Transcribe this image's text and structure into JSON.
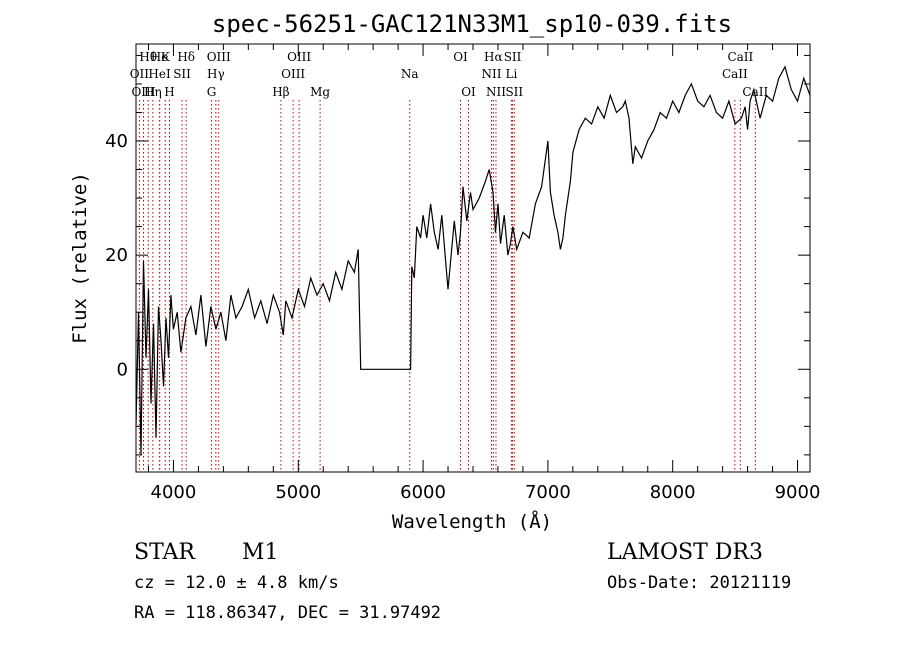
{
  "chart_data": {
    "type": "line",
    "title": "spec-56251-GAC121N33M1_sp10-039.fits",
    "xlabel": "Wavelength (Å)",
    "ylabel": "Flux (relative)",
    "xlim": [
      3700,
      9100
    ],
    "ylim": [
      -18,
      57
    ],
    "xticks": [
      4000,
      5000,
      6000,
      7000,
      8000,
      9000
    ],
    "yticks": [
      0,
      20,
      40
    ],
    "grid": false,
    "series": [
      {
        "name": "flux",
        "x": [
          3700,
          3720,
          3740,
          3760,
          3780,
          3800,
          3820,
          3840,
          3860,
          3880,
          3900,
          3920,
          3940,
          3960,
          3980,
          4000,
          4030,
          4060,
          4100,
          4140,
          4180,
          4220,
          4260,
          4300,
          4340,
          4380,
          4420,
          4460,
          4500,
          4550,
          4600,
          4650,
          4700,
          4750,
          4800,
          4850,
          4880,
          4900,
          4950,
          5000,
          5050,
          5100,
          5150,
          5200,
          5250,
          5300,
          5350,
          5400,
          5450,
          5480,
          5500,
          5520,
          5700,
          5900,
          5910,
          5930,
          5950,
          5980,
          6000,
          6030,
          6060,
          6090,
          6120,
          6150,
          6200,
          6250,
          6280,
          6300,
          6320,
          6350,
          6380,
          6400,
          6450,
          6500,
          6530,
          6560,
          6580,
          6600,
          6620,
          6650,
          6680,
          6700,
          6720,
          6750,
          6800,
          6850,
          6900,
          6950,
          7000,
          7020,
          7050,
          7080,
          7100,
          7120,
          7140,
          7180,
          7200,
          7250,
          7300,
          7350,
          7400,
          7450,
          7500,
          7550,
          7600,
          7620,
          7650,
          7680,
          7700,
          7750,
          7800,
          7850,
          7900,
          7950,
          8000,
          8050,
          8100,
          8150,
          8200,
          8250,
          8300,
          8350,
          8400,
          8450,
          8500,
          8550,
          8580,
          8600,
          8620,
          8650,
          8700,
          8750,
          8800,
          8850,
          8900,
          8950,
          9000,
          9050,
          9100
        ],
        "y": [
          -10,
          10,
          -15,
          19,
          2,
          14,
          -6,
          8,
          -12,
          11,
          5,
          -3,
          9,
          2,
          13,
          7,
          10,
          3,
          9,
          11,
          6,
          13,
          4,
          11,
          7,
          10,
          5,
          13,
          9,
          11,
          14,
          9,
          12,
          8,
          13,
          10,
          6,
          12,
          9,
          14,
          11,
          16,
          13,
          15,
          12,
          17,
          14,
          19,
          17,
          21,
          0,
          0,
          0,
          0,
          18,
          16,
          25,
          23,
          27,
          23,
          29,
          24,
          21,
          27,
          14,
          26,
          20,
          24,
          32,
          26,
          31,
          28,
          30,
          33,
          35,
          31,
          24,
          29,
          22,
          27,
          20,
          22,
          25,
          21,
          24,
          23,
          29,
          32,
          40,
          31,
          27,
          24,
          21,
          23,
          27,
          33,
          38,
          42,
          44,
          43,
          46,
          44,
          48,
          45,
          46,
          47,
          44,
          36,
          39,
          37,
          40,
          42,
          45,
          44,
          47,
          45,
          48,
          50,
          47,
          46,
          48,
          45,
          44,
          47,
          43,
          44,
          46,
          42,
          47,
          49,
          44,
          48,
          47,
          51,
          53,
          49,
          47,
          51,
          48
        ]
      }
    ],
    "line_markers": [
      {
        "label": "Hθ",
        "wavelength": 3798,
        "row": 1
      },
      {
        "label": "OII",
        "wavelength": 3727,
        "row": 2
      },
      {
        "label": "OIII",
        "wavelength": 3760,
        "row": 3
      },
      {
        "label": "He",
        "wavelength": 3889,
        "row": 1
      },
      {
        "label": "Hη",
        "wavelength": 3835,
        "row": 3
      },
      {
        "label": "K",
        "wavelength": 3934,
        "row": 1
      },
      {
        "label": "HeI",
        "wavelength": 3889,
        "row": 2
      },
      {
        "label": "H",
        "wavelength": 3968,
        "row": 3
      },
      {
        "label": "Hδ",
        "wavelength": 4102,
        "row": 1
      },
      {
        "label": "SII",
        "wavelength": 4069,
        "row": 2
      },
      {
        "label": "OIII",
        "wavelength": 4363,
        "row": 1
      },
      {
        "label": "Hγ",
        "wavelength": 4340,
        "row": 2
      },
      {
        "label": "G",
        "wavelength": 4305,
        "row": 3
      },
      {
        "label": "OIII",
        "wavelength": 5007,
        "row": 1
      },
      {
        "label": "OIII",
        "wavelength": 4959,
        "row": 2
      },
      {
        "label": "Hβ",
        "wavelength": 4861,
        "row": 3
      },
      {
        "label": "Mg",
        "wavelength": 5175,
        "row": 3
      },
      {
        "label": "Na",
        "wavelength": 5893,
        "row": 2
      },
      {
        "label": "OI",
        "wavelength": 6300,
        "row": 1
      },
      {
        "label": "OI",
        "wavelength": 6364,
        "row": 3
      },
      {
        "label": "Hα",
        "wavelength": 6563,
        "row": 1
      },
      {
        "label": "SII",
        "wavelength": 6717,
        "row": 1
      },
      {
        "label": "NII",
        "wavelength": 6548,
        "row": 2
      },
      {
        "label": "Li",
        "wavelength": 6708,
        "row": 2
      },
      {
        "label": "NII",
        "wavelength": 6584,
        "row": 3
      },
      {
        "label": "SII",
        "wavelength": 6731,
        "row": 3
      },
      {
        "label": "CaII",
        "wavelength": 8542,
        "row": 1
      },
      {
        "label": "CaII",
        "wavelength": 8498,
        "row": 2
      },
      {
        "label": "CaII",
        "wavelength": 8662,
        "row": 3
      }
    ]
  },
  "info": {
    "object_class": "STAR",
    "subclass": "M1",
    "survey": "LAMOST DR3",
    "redshift": "cz = 12.0 ± 4.8 km/s",
    "obs_date": "Obs-Date: 20121119",
    "coords": "RA = 118.86347, DEC =  31.97492"
  }
}
